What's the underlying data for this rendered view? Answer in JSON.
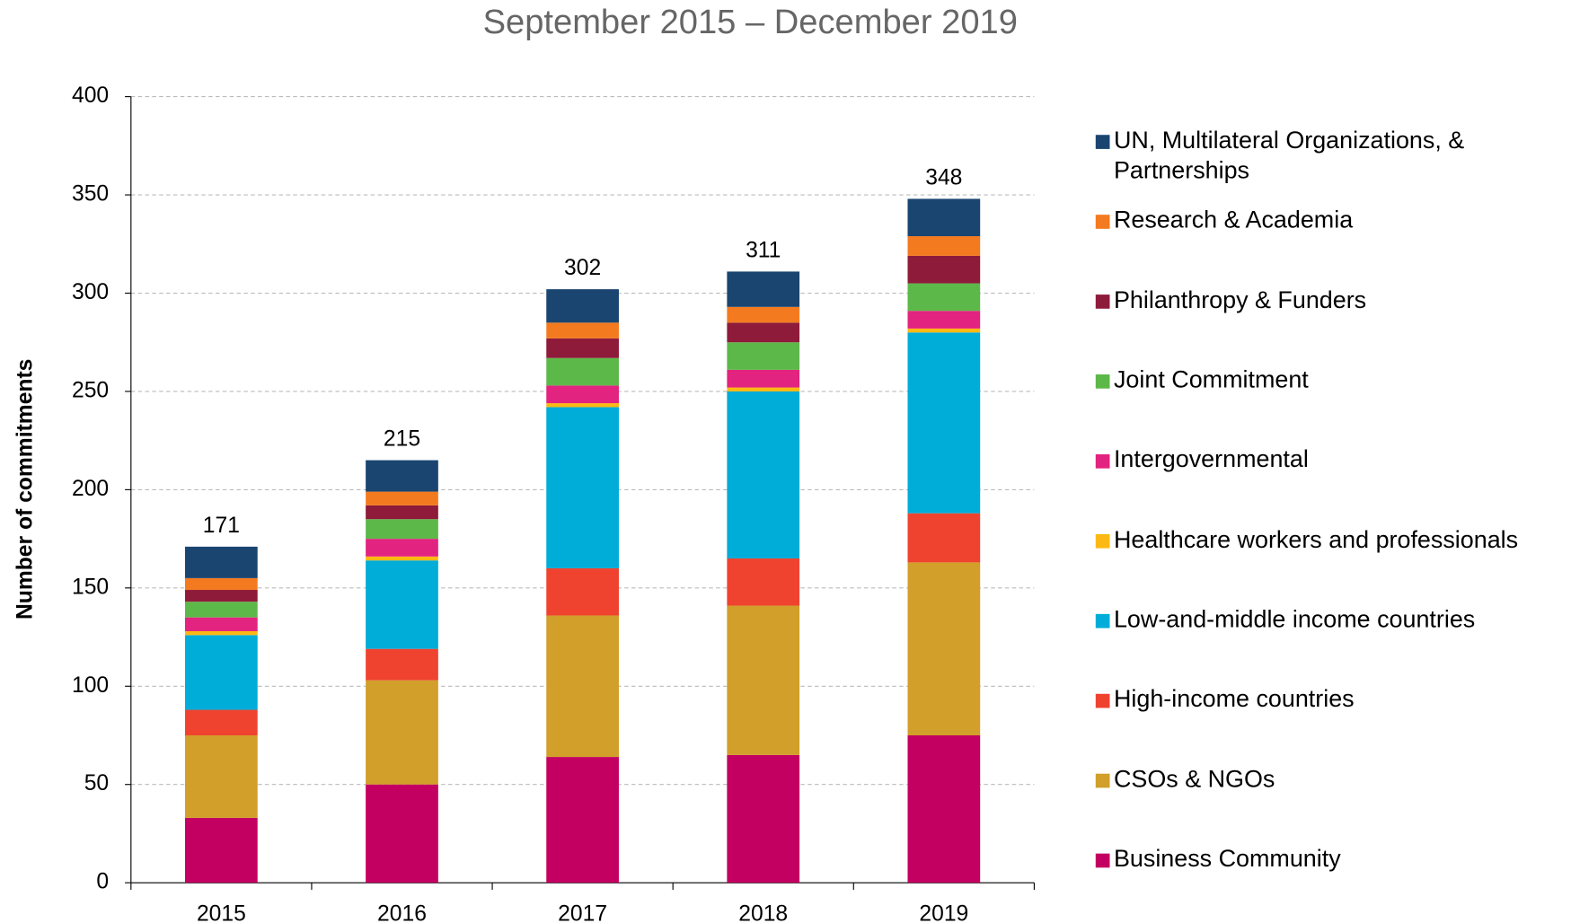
{
  "chart_data": {
    "type": "stacked_bar",
    "title": "September 2015 – December 2019",
    "y_label": "Number of commitments",
    "categories": [
      "2015",
      "2016",
      "2017",
      "2018",
      "2019"
    ],
    "ylim": [
      0,
      400
    ],
    "yticks": [
      0,
      50,
      100,
      150,
      200,
      250,
      300,
      350,
      400
    ],
    "grid": true,
    "legend": "right",
    "totals": [
      171,
      215,
      302,
      311,
      348
    ],
    "series": [
      {
        "name": "Business Community",
        "color": "#c30062",
        "values": [
          33,
          50,
          64,
          65,
          75
        ]
      },
      {
        "name": "CSOs & NGOs",
        "color": "#d19f2a",
        "values": [
          42,
          53,
          72,
          76,
          88
        ]
      },
      {
        "name": "High-income countries",
        "color": "#ef4330",
        "values": [
          13,
          16,
          24,
          24,
          25
        ]
      },
      {
        "name": "Low-and-middle income countries",
        "color": "#00acd8",
        "values": [
          38,
          45,
          82,
          85,
          92
        ]
      },
      {
        "name": "Healthcare workers and professionals",
        "color": "#fdb913",
        "values": [
          2,
          2,
          2,
          2,
          2
        ]
      },
      {
        "name": "Intergovernmental",
        "color": "#e2237f",
        "values": [
          7,
          9,
          9,
          9,
          9
        ]
      },
      {
        "name": "Joint Commitment",
        "color": "#5db84a",
        "values": [
          8,
          10,
          14,
          14,
          14
        ]
      },
      {
        "name": "Philanthropy & Funders",
        "color": "#8e1b3a",
        "values": [
          6,
          7,
          10,
          10,
          14
        ]
      },
      {
        "name": "Research & Academia",
        "color": "#f47a20",
        "values": [
          6,
          7,
          8,
          8,
          10
        ]
      },
      {
        "name": "UN, Multilateral Organizations, & Partnerships",
        "color": "#1a4570",
        "values": [
          16,
          16,
          17,
          18,
          19
        ]
      }
    ]
  }
}
